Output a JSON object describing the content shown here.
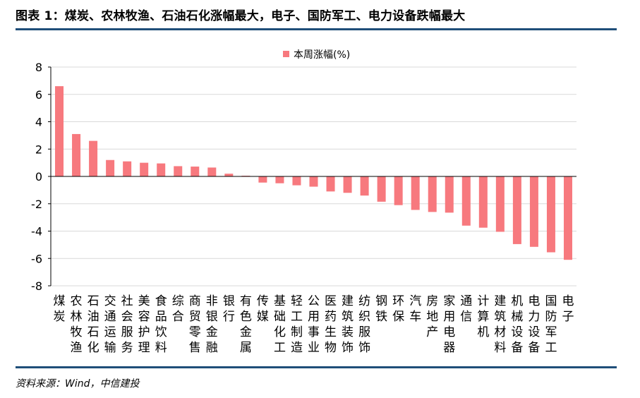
{
  "header": {
    "title": "图表 1：煤炭、农林牧渔、石油石化涨幅最大，电子、国防军工、电力设备跌幅最大"
  },
  "footer": {
    "source": "资料来源：Wind，中信建投"
  },
  "colors": {
    "bar": "#f7797e",
    "rule": "#1f4e79",
    "grid": "#d9d9d9",
    "axis": "#000000"
  },
  "chart_data": {
    "type": "bar",
    "ylim": [
      -8,
      8
    ],
    "yticks": [
      8,
      6,
      4,
      2,
      0,
      -2,
      -4,
      -6,
      -8
    ],
    "grid": true,
    "legend_position": "top",
    "categories": [
      "煤炭",
      "农林牧渔",
      "石油石化",
      "交通运输",
      "社会服务",
      "美容护理",
      "食品饮料",
      "综合",
      "商贸零售",
      "非银金融",
      "银行",
      "有色金属",
      "传媒",
      "基础化工",
      "轻工制造",
      "公用事业",
      "医药生物",
      "建筑装饰",
      "纺织服饰",
      "钢铁",
      "环保",
      "汽车",
      "房地产",
      "家用电器",
      "通信",
      "计算机",
      "建筑材料",
      "机械设备",
      "电力设备",
      "国防军工",
      "电子"
    ],
    "series": [
      {
        "name": "本周涨幅(%)",
        "values": [
          6.6,
          3.1,
          2.6,
          1.2,
          1.1,
          1.0,
          0.95,
          0.75,
          0.72,
          0.65,
          0.2,
          0.05,
          -0.45,
          -0.5,
          -0.65,
          -0.75,
          -1.1,
          -1.2,
          -1.4,
          -1.85,
          -2.1,
          -2.45,
          -2.6,
          -2.65,
          -3.6,
          -3.75,
          -4.05,
          -4.95,
          -5.15,
          -5.55,
          -6.1
        ]
      }
    ]
  }
}
